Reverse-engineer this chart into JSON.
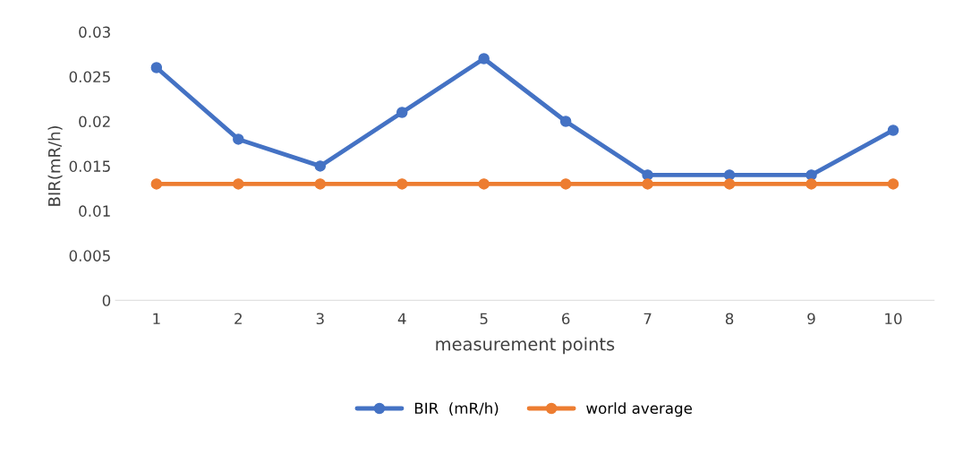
{
  "chart_data": {
    "type": "line",
    "xlabel": "measurement points",
    "ylabel": "BIR(mR/h)",
    "categories": [
      "1",
      "2",
      "3",
      "4",
      "5",
      "6",
      "7",
      "8",
      "9",
      "10"
    ],
    "series": [
      {
        "name": "BIR  (mR/h)",
        "color": "#4472c4",
        "values": [
          0.026,
          0.018,
          0.015,
          0.021,
          0.027,
          0.02,
          0.014,
          0.014,
          0.014,
          0.019
        ]
      },
      {
        "name": "world average",
        "color": "#ed7d31",
        "values": [
          0.013,
          0.013,
          0.013,
          0.013,
          0.013,
          0.013,
          0.013,
          0.013,
          0.013,
          0.013
        ]
      }
    ],
    "ylim": [
      0,
      0.03
    ],
    "yticks": [
      0,
      0.005,
      0.01,
      0.015,
      0.02,
      0.025,
      0.03
    ],
    "grid": false,
    "legend": "bottom",
    "marker": "circle",
    "line_style": "solid"
  }
}
